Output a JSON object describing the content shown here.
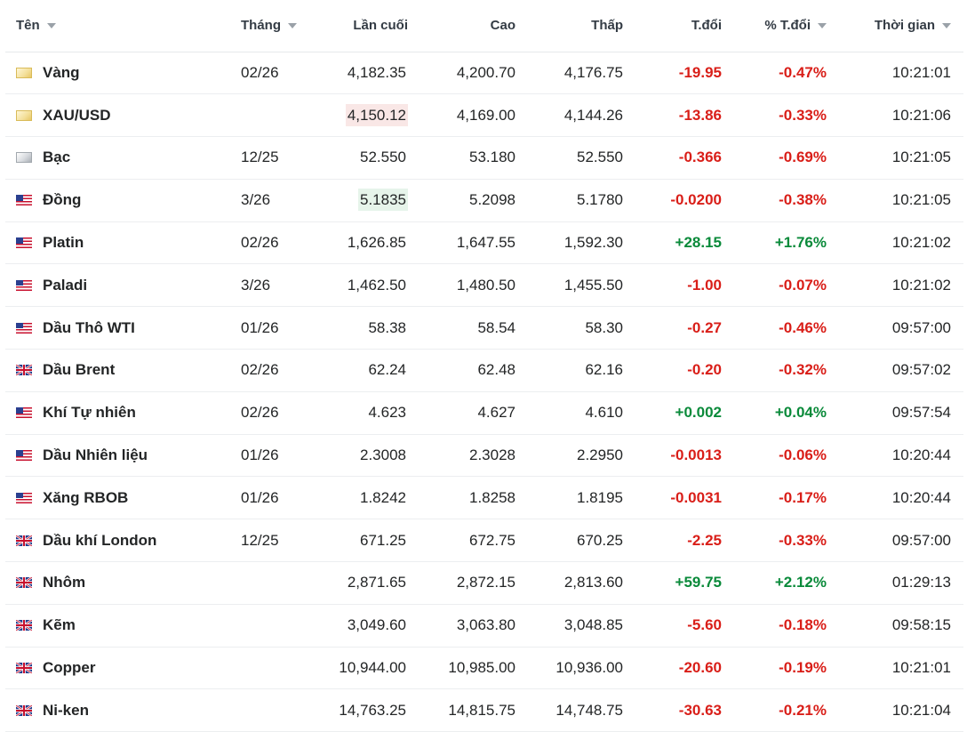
{
  "columns": {
    "name": "Tên",
    "month": "Tháng",
    "last": "Lần cuối",
    "high": "Cao",
    "low": "Thấp",
    "change": "T.đổi",
    "change_pct": "% T.đổi",
    "time": "Thời gian"
  },
  "colors": {
    "negative": "#d91e18",
    "positive": "#0a8a3a",
    "flash_down": "#f9e7e6",
    "flash_up": "#e6f4ea"
  },
  "rows": [
    {
      "flag": "gold-icon",
      "name": "Vàng",
      "month": "02/26",
      "last": "4,182.35",
      "high": "4,200.70",
      "low": "4,176.75",
      "change": "-19.95",
      "change_pct": "-0.47%",
      "time": "10:21:01",
      "direction": "down",
      "flash": ""
    },
    {
      "flag": "gold-icon",
      "name": "XAU/USD",
      "month": "",
      "last": "4,150.12",
      "high": "4,169.00",
      "low": "4,144.26",
      "change": "-13.86",
      "change_pct": "-0.33%",
      "time": "10:21:06",
      "direction": "down",
      "flash": "down"
    },
    {
      "flag": "silver-icon",
      "name": "Bạc",
      "month": "12/25",
      "last": "52.550",
      "high": "53.180",
      "low": "52.550",
      "change": "-0.366",
      "change_pct": "-0.69%",
      "time": "10:21:05",
      "direction": "down",
      "flash": ""
    },
    {
      "flag": "us-flag-icon",
      "name": "Đồng",
      "month": "3/26",
      "last": "5.1835",
      "high": "5.2098",
      "low": "5.1780",
      "change": "-0.0200",
      "change_pct": "-0.38%",
      "time": "10:21:05",
      "direction": "down",
      "flash": "up"
    },
    {
      "flag": "us-flag-icon",
      "name": "Platin",
      "month": "02/26",
      "last": "1,626.85",
      "high": "1,647.55",
      "low": "1,592.30",
      "change": "+28.15",
      "change_pct": "+1.76%",
      "time": "10:21:02",
      "direction": "up",
      "flash": ""
    },
    {
      "flag": "us-flag-icon",
      "name": "Paladi",
      "month": "3/26",
      "last": "1,462.50",
      "high": "1,480.50",
      "low": "1,455.50",
      "change": "-1.00",
      "change_pct": "-0.07%",
      "time": "10:21:02",
      "direction": "down",
      "flash": ""
    },
    {
      "flag": "us-flag-icon",
      "name": "Dầu Thô WTI",
      "month": "01/26",
      "last": "58.38",
      "high": "58.54",
      "low": "58.30",
      "change": "-0.27",
      "change_pct": "-0.46%",
      "time": "09:57:00",
      "direction": "down",
      "flash": ""
    },
    {
      "flag": "uk-flag-icon",
      "name": "Dầu Brent",
      "month": "02/26",
      "last": "62.24",
      "high": "62.48",
      "low": "62.16",
      "change": "-0.20",
      "change_pct": "-0.32%",
      "time": "09:57:02",
      "direction": "down",
      "flash": ""
    },
    {
      "flag": "us-flag-icon",
      "name": "Khí Tự nhiên",
      "month": "02/26",
      "last": "4.623",
      "high": "4.627",
      "low": "4.610",
      "change": "+0.002",
      "change_pct": "+0.04%",
      "time": "09:57:54",
      "direction": "up",
      "flash": ""
    },
    {
      "flag": "us-flag-icon",
      "name": "Dầu Nhiên liệu",
      "month": "01/26",
      "last": "2.3008",
      "high": "2.3028",
      "low": "2.2950",
      "change": "-0.0013",
      "change_pct": "-0.06%",
      "time": "10:20:44",
      "direction": "down",
      "flash": ""
    },
    {
      "flag": "us-flag-icon",
      "name": "Xăng RBOB",
      "month": "01/26",
      "last": "1.8242",
      "high": "1.8258",
      "low": "1.8195",
      "change": "-0.0031",
      "change_pct": "-0.17%",
      "time": "10:20:44",
      "direction": "down",
      "flash": ""
    },
    {
      "flag": "uk-flag-icon",
      "name": "Dầu khí London",
      "month": "12/25",
      "last": "671.25",
      "high": "672.75",
      "low": "670.25",
      "change": "-2.25",
      "change_pct": "-0.33%",
      "time": "09:57:00",
      "direction": "down",
      "flash": ""
    },
    {
      "flag": "uk-flag-icon",
      "name": "Nhôm",
      "month": "",
      "last": "2,871.65",
      "high": "2,872.15",
      "low": "2,813.60",
      "change": "+59.75",
      "change_pct": "+2.12%",
      "time": "01:29:13",
      "direction": "up",
      "flash": ""
    },
    {
      "flag": "uk-flag-icon",
      "name": "Kẽm",
      "month": "",
      "last": "3,049.60",
      "high": "3,063.80",
      "low": "3,048.85",
      "change": "-5.60",
      "change_pct": "-0.18%",
      "time": "09:58:15",
      "direction": "down",
      "flash": ""
    },
    {
      "flag": "uk-flag-icon",
      "name": "Copper",
      "month": "",
      "last": "10,944.00",
      "high": "10,985.00",
      "low": "10,936.00",
      "change": "-20.60",
      "change_pct": "-0.19%",
      "time": "10:21:01",
      "direction": "down",
      "flash": ""
    },
    {
      "flag": "uk-flag-icon",
      "name": "Ni-ken",
      "month": "",
      "last": "14,763.25",
      "high": "14,815.75",
      "low": "14,748.75",
      "change": "-30.63",
      "change_pct": "-0.21%",
      "time": "10:21:04",
      "direction": "down",
      "flash": ""
    }
  ]
}
